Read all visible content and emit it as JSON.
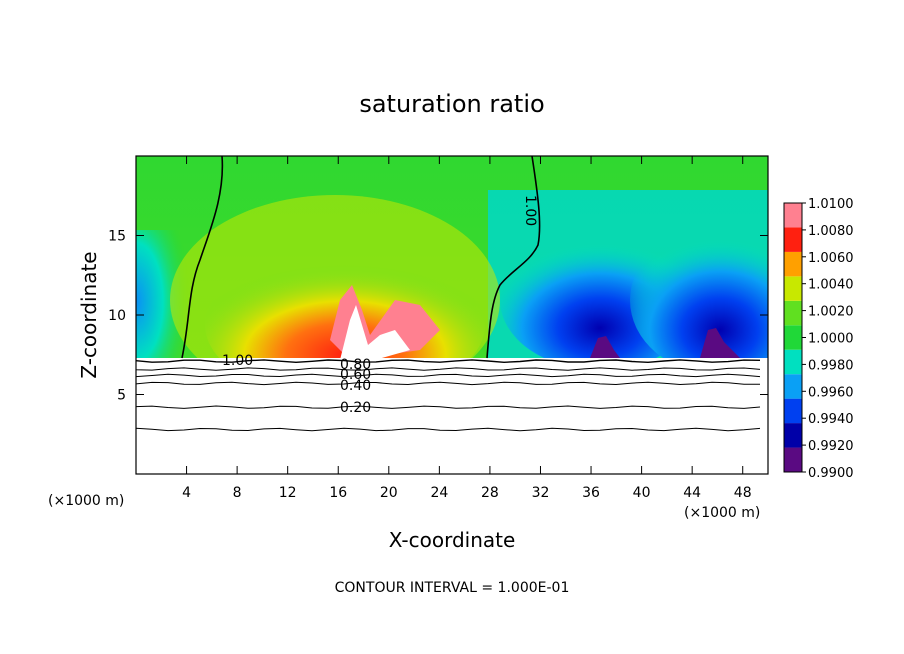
{
  "chart_data": {
    "type": "heatmap",
    "title": "saturation ratio",
    "xlabel": "X-coordinate",
    "ylabel": "Z-coordinate",
    "x_unit_left": "(×1000 m)",
    "x_unit_right": "(×1000 m)",
    "footer": "CONTOUR INTERVAL = 1.000E-01",
    "xlim": [
      0,
      50
    ],
    "ylim": [
      0,
      20
    ],
    "xticks": [
      4,
      8,
      12,
      16,
      20,
      24,
      28,
      32,
      36,
      40,
      44,
      48
    ],
    "yticks": [
      5,
      10,
      15
    ],
    "colorbar": {
      "levels": [
        0.99,
        0.992,
        0.994,
        0.996,
        0.998,
        1.0,
        1.002,
        1.004,
        1.006,
        1.008,
        1.01
      ],
      "labels": [
        "0.9900",
        "0.9920",
        "0.9940",
        "0.9960",
        "0.9980",
        "1.0000",
        "1.0020",
        "1.0040",
        "1.0060",
        "1.0080",
        "1.0100"
      ],
      "colors": [
        "#5a0a82",
        "#0000a8",
        "#0040f0",
        "#0aa0f5",
        "#00e0c0",
        "#20d838",
        "#60e020",
        "#c8e800",
        "#ffa000",
        "#ff2010",
        "#ff8090"
      ]
    },
    "contour_labels": [
      "1.00",
      "1.00",
      "0.80",
      "0.60",
      "0.40",
      "0.20"
    ],
    "contour_levels": [
      1.0,
      0.8,
      0.6,
      0.4,
      0.2
    ],
    "contour_heights_km": [
      7.1,
      6.6,
      6.2,
      5.7,
      4.2,
      2.8
    ],
    "subsaturated_top_km": 7.2,
    "field_regions": {
      "near_saturated_dome": {
        "x_range": [
          3.5,
          28
        ],
        "peak_value": 1.008,
        "peak_x": 16,
        "peak_z": 11
      },
      "subsaturated_cells": [
        {
          "x": 37,
          "z": 8.5,
          "value": 0.99
        },
        {
          "x": 45.5,
          "z": 9,
          "value": 0.99
        }
      ],
      "ambient_upper_value": 1.0
    }
  }
}
